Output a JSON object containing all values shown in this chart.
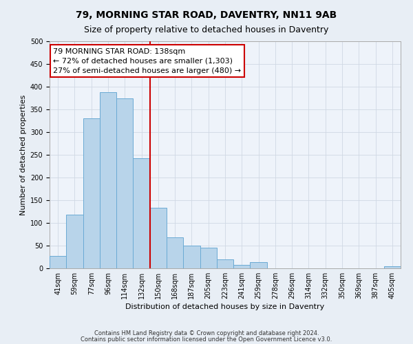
{
  "title": "79, MORNING STAR ROAD, DAVENTRY, NN11 9AB",
  "subtitle": "Size of property relative to detached houses in Daventry",
  "xlabel": "Distribution of detached houses by size in Daventry",
  "ylabel": "Number of detached properties",
  "bar_labels": [
    "41sqm",
    "59sqm",
    "77sqm",
    "96sqm",
    "114sqm",
    "132sqm",
    "150sqm",
    "168sqm",
    "187sqm",
    "205sqm",
    "223sqm",
    "241sqm",
    "259sqm",
    "278sqm",
    "296sqm",
    "314sqm",
    "332sqm",
    "350sqm",
    "369sqm",
    "387sqm",
    "405sqm"
  ],
  "bar_values": [
    28,
    118,
    330,
    388,
    375,
    242,
    133,
    68,
    50,
    46,
    19,
    7,
    13,
    0,
    0,
    0,
    0,
    0,
    0,
    0,
    5
  ],
  "bar_color": "#b8d4ea",
  "bar_edge_color": "#6aaad4",
  "vline_index": 5,
  "annotation_line1": "79 MORNING STAR ROAD: 138sqm",
  "annotation_line2": "← 72% of detached houses are smaller (1,303)",
  "annotation_line3": "27% of semi-detached houses are larger (480) →",
  "annotation_box_facecolor": "#ffffff",
  "annotation_border_color": "#cc0000",
  "vline_color": "#cc0000",
  "ylim": [
    0,
    500
  ],
  "yticks": [
    0,
    50,
    100,
    150,
    200,
    250,
    300,
    350,
    400,
    450,
    500
  ],
  "footnote1": "Contains HM Land Registry data © Crown copyright and database right 2024.",
  "footnote2": "Contains public sector information licensed under the Open Government Licence v3.0.",
  "fig_facecolor": "#e8eef5",
  "plot_facecolor": "#eef3fa",
  "grid_color": "#d0d8e4",
  "title_fontsize": 10,
  "subtitle_fontsize": 9,
  "ylabel_fontsize": 8,
  "xlabel_fontsize": 8,
  "tick_fontsize": 7,
  "annot_fontsize": 8,
  "footnote_fontsize": 6
}
